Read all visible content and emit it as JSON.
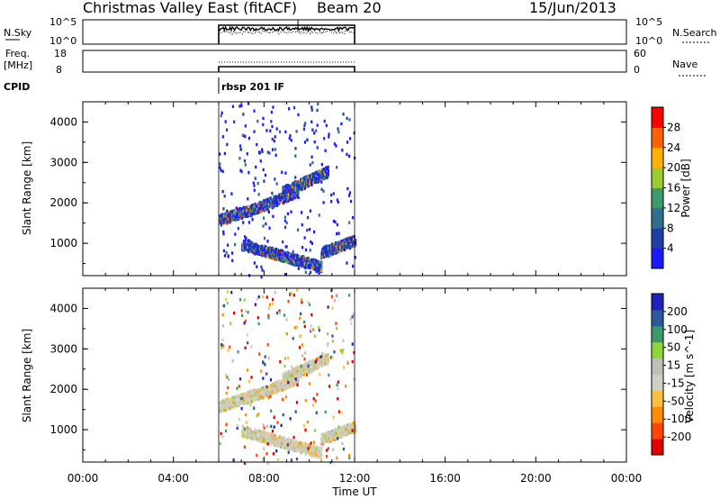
{
  "header": {
    "title": "Christmas Valley East (fitACF)",
    "beam": "Beam 20",
    "date": "15/Jun/2013"
  },
  "nsky_panel": {
    "left_label": "N.Sky",
    "left_ticks": [
      "10^5",
      "10^0"
    ],
    "right_ticks": [
      "10^5",
      "10^0"
    ],
    "right_label": "N.Search"
  },
  "freq_panel": {
    "left_label_1": "Freq.",
    "left_label_2": "[MHz]",
    "left_ticks": [
      "18",
      "8"
    ],
    "right_ticks": [
      "60",
      "0"
    ],
    "right_label": "Nave"
  },
  "cpid": {
    "label": "CPID",
    "program": "rbsp 201 IF"
  },
  "time_axis": {
    "label": "Time UT",
    "ticks": [
      "00:00",
      "04:00",
      "08:00",
      "12:00",
      "16:00",
      "20:00",
      "00:00"
    ]
  },
  "colors": {
    "power_scale": [
      "#1a1aff",
      "#1f3fa8",
      "#2e6e8e",
      "#3d9a6a",
      "#9acd32",
      "#ffb000",
      "#ff6000",
      "#ff0000"
    ],
    "velocity_scale": [
      "#e00000",
      "#ff4500",
      "#ff8c00",
      "#ffc040",
      "#cfcfc5",
      "#c0c0b8",
      "#8cd63c",
      "#3c9a6a",
      "#2a5a9a",
      "#2020c0"
    ]
  },
  "chart_data": [
    {
      "type": "heatmap",
      "name": "power",
      "xlabel": "Time UT",
      "ylabel": "Slant Range [km]",
      "xlim_hours": [
        0,
        24
      ],
      "ylim_km": [
        200,
        4500
      ],
      "yticks": [
        "1000",
        "2000",
        "3000",
        "4000"
      ],
      "data_window_hours": [
        6.0,
        12.0
      ],
      "colorbar": {
        "label": "Power [dB]",
        "ticks": [
          "4",
          "8",
          "12",
          "16",
          "20",
          "24",
          "28"
        ],
        "range": [
          0,
          32
        ]
      },
      "echo_bands": [
        {
          "t_start": 6.0,
          "t_end": 7.6,
          "range_start_km": 1600,
          "range_end_km": 1900
        },
        {
          "t_start": 7.2,
          "t_end": 9.5,
          "range_start_km": 1800,
          "range_end_km": 2300
        },
        {
          "t_start": 8.8,
          "t_end": 10.8,
          "range_start_km": 2300,
          "range_end_km": 2800
        },
        {
          "t_start": 7.0,
          "t_end": 10.5,
          "range_start_km": 1000,
          "range_end_km": 450
        },
        {
          "t_start": 10.5,
          "t_end": 12.0,
          "range_start_km": 800,
          "range_end_km": 1100
        }
      ]
    },
    {
      "type": "heatmap",
      "name": "velocity",
      "xlabel": "Time UT",
      "ylabel": "Slant Range [km]",
      "xlim_hours": [
        0,
        24
      ],
      "ylim_km": [
        200,
        4500
      ],
      "yticks": [
        "1000",
        "2000",
        "3000",
        "4000"
      ],
      "data_window_hours": [
        6.0,
        12.0
      ],
      "colorbar": {
        "label": "Velocity [m s^-1]",
        "ticks": [
          "200",
          "100",
          "50",
          "15",
          "-15",
          "-50",
          "-100",
          "-200"
        ],
        "range": [
          -250,
          250
        ]
      },
      "echo_bands": [
        {
          "t_start": 6.0,
          "t_end": 7.6,
          "range_start_km": 1600,
          "range_end_km": 1900
        },
        {
          "t_start": 7.2,
          "t_end": 9.5,
          "range_start_km": 1800,
          "range_end_km": 2300
        },
        {
          "t_start": 8.8,
          "t_end": 10.8,
          "range_start_km": 2300,
          "range_end_km": 2800
        },
        {
          "t_start": 7.0,
          "t_end": 10.5,
          "range_start_km": 1000,
          "range_end_km": 450
        },
        {
          "t_start": 10.5,
          "t_end": 12.0,
          "range_start_km": 800,
          "range_end_km": 1100
        }
      ]
    }
  ]
}
